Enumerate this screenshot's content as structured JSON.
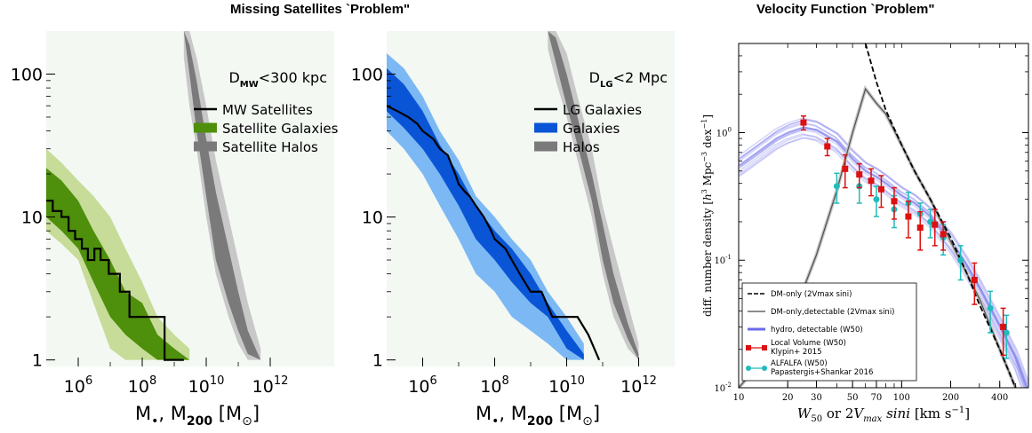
{
  "titles": {
    "left": "Missing Satellites `Problem\"",
    "right": "Velocity Function `Problem\""
  },
  "colors": {
    "green_dark": "#4e8f0c",
    "green_light": "#c6dc98",
    "blue_dark": "#0a55d6",
    "blue_light": "#7cb8f4",
    "gray_dark": "#7a7a7a",
    "gray_light": "#c8c8c8",
    "panel_bg": "#f3f8f3",
    "hydro": "#6a6ae8",
    "red": "#dd1111",
    "cyan": "#22bbbb"
  },
  "chart_data": [
    {
      "type": "line",
      "xscale": "log",
      "yscale": "log",
      "xlim": [
        100000,
        100000000000000
      ],
      "ylim": [
        0.9,
        200
      ],
      "xticks": [
        1000000,
        100000000,
        10000000000,
        1000000000000
      ],
      "xtick_labels": [
        "10",
        "10",
        "10",
        "10"
      ],
      "xtick_exps": [
        "6",
        "8",
        "10",
        "12"
      ],
      "yticks": [
        1,
        10,
        100
      ],
      "ytick_labels": [
        "1",
        "10",
        "100"
      ],
      "xlabel": "M, M [M]",
      "xlabel_parts": {
        "m1": "M",
        "sub1": "•",
        "sep": ",  M",
        "sub2": "200",
        "unit_open": " [M",
        "unit_sub": "⊙",
        "unit_close": "]"
      },
      "annotation": {
        "main": "D",
        "sub": "MW",
        "rest": "<300 kpc"
      },
      "legend": [
        "MW Satellites",
        "Satellite Galaxies",
        "Satellite Halos"
      ],
      "series": [
        {
          "name": "MW Satellites",
          "kind": "step",
          "x": [
            100000,
            160000,
            160000,
            300000,
            300000,
            500000,
            500000,
            800000,
            800000,
            1300000,
            1300000,
            2000000,
            2000000,
            3200000,
            3200000,
            5000000,
            5000000,
            9000000,
            9000000,
            20000000,
            20000000,
            40000000,
            40000000,
            500000000,
            500000000,
            2000000000
          ],
          "y": [
            13,
            13,
            11,
            11,
            10,
            10,
            8,
            8,
            7,
            7,
            6,
            6,
            5,
            5,
            6,
            6,
            5,
            5,
            4,
            4,
            3,
            3,
            2,
            2,
            1,
            1
          ]
        },
        {
          "name": "Satellite Galaxies",
          "kind": "band",
          "x": [
            100000,
            300000,
            1000000,
            3000000,
            10000000,
            30000000,
            100000000,
            300000000,
            1000000000,
            3000000000
          ],
          "outer_low": [
            8,
            6.5,
            5,
            2.5,
            1.2,
            1.0,
            1.0,
            1.0,
            1.0,
            1.0
          ],
          "outer_high": [
            30,
            24,
            18,
            14,
            10,
            6,
            3.5,
            2,
            1.5,
            1.2
          ],
          "inner_low": [
            10,
            8,
            6,
            3.5,
            2,
            1.5,
            1.2,
            1.0,
            1.0,
            1.0
          ],
          "inner_high": [
            22,
            18,
            13,
            8,
            5,
            3,
            2.5,
            1.5,
            1.2,
            1.0
          ]
        },
        {
          "name": "Satellite Halos",
          "kind": "band",
          "x": [
            2000000000,
            3000000000,
            5000000000,
            10000000000,
            20000000000,
            50000000000,
            100000000000,
            200000000000,
            500000000000
          ],
          "outer_low": [
            130,
            60,
            30,
            10,
            4,
            2,
            1.3,
            1.0,
            1.0
          ],
          "outer_high": [
            200,
            200,
            130,
            60,
            25,
            10,
            5,
            2.5,
            1.2
          ],
          "inner_low": [
            200,
            100,
            40,
            14,
            5,
            2.5,
            1.6,
            1.1,
            1.0
          ],
          "inner_high": [
            200,
            160,
            90,
            35,
            15,
            6,
            3,
            1.6,
            1.0
          ]
        }
      ]
    },
    {
      "type": "line",
      "xscale": "log",
      "yscale": "log",
      "xlim": [
        100000,
        10000000000000
      ],
      "ylim": [
        0.9,
        200
      ],
      "xticks": [
        1000000,
        100000000,
        10000000000,
        1000000000000
      ],
      "xtick_labels": [
        "10",
        "10",
        "10",
        "10"
      ],
      "xtick_exps": [
        "6",
        "8",
        "10",
        "12"
      ],
      "yticks": [
        1,
        10,
        100
      ],
      "ytick_labels": [
        "1",
        "10",
        "100"
      ],
      "xlabel": "M, M [M]",
      "annotation": {
        "main": "D",
        "sub": "LG",
        "rest": "<2 Mpc"
      },
      "legend": [
        "LG Galaxies",
        "Galaxies",
        "Halos"
      ],
      "series": [
        {
          "name": "LG Galaxies",
          "kind": "step",
          "x": [
            100000,
            200000,
            400000,
            700000,
            1000000,
            2000000,
            3000000,
            5000000,
            8000000,
            10000000,
            15000000,
            20000000,
            30000000,
            50000000,
            80000000,
            100000000,
            200000000,
            300000000,
            500000000,
            1000000000,
            2000000000,
            4000000000,
            10000000000,
            20000000000,
            40000000000,
            80000000000
          ],
          "y": [
            60,
            55,
            50,
            45,
            40,
            35,
            30,
            27,
            20,
            17,
            15,
            14,
            12,
            10,
            8,
            7,
            6,
            5,
            4,
            3,
            3,
            2,
            2,
            2,
            1.5,
            1
          ]
        },
        {
          "name": "Galaxies",
          "kind": "band",
          "x": [
            100000,
            300000,
            1000000,
            3000000,
            10000000,
            30000000,
            100000000,
            300000000,
            1000000000,
            3000000000,
            10000000000,
            30000000000
          ],
          "outer_low": [
            40,
            30,
            20,
            12,
            7,
            4,
            3,
            2,
            1.6,
            1.3,
            1.0,
            1.0
          ],
          "outer_high": [
            140,
            110,
            70,
            40,
            25,
            14,
            10,
            7,
            5,
            3,
            2,
            1.3
          ],
          "inner_low": [
            55,
            42,
            30,
            20,
            12,
            7,
            5,
            3.5,
            2.5,
            2,
            1.2,
            1.0
          ],
          "inner_high": [
            110,
            85,
            55,
            32,
            20,
            12,
            8,
            6,
            4,
            2.5,
            1.6,
            1.1
          ]
        },
        {
          "name": "Halos",
          "kind": "band",
          "x": [
            3000000000,
            5000000000,
            10000000000,
            20000000000,
            50000000000,
            100000000000,
            200000000000,
            500000000000,
            1000000000000
          ],
          "outer_low": [
            150,
            90,
            50,
            25,
            10,
            4,
            2,
            1.2,
            1.0
          ],
          "outer_high": [
            200,
            200,
            140,
            70,
            30,
            12,
            6,
            2.5,
            1.3
          ],
          "inner_low": [
            200,
            120,
            60,
            32,
            13,
            5,
            2.5,
            1.4,
            1.0
          ],
          "inner_high": [
            200,
            180,
            100,
            50,
            20,
            9,
            4,
            1.8,
            1.1
          ]
        }
      ]
    },
    {
      "type": "line",
      "xscale": "log",
      "yscale": "log",
      "xlim": [
        10,
        600
      ],
      "ylim": [
        0.01,
        5
      ],
      "xticks": [
        10,
        20,
        30,
        50,
        70,
        100,
        200,
        400
      ],
      "xticks_grid": [
        10,
        20,
        30,
        40,
        50,
        60,
        70,
        80,
        90,
        100,
        200,
        300,
        400,
        500
      ],
      "xtick_labels": [
        "10",
        "20",
        "30",
        "50",
        "70",
        "100",
        "200",
        "400"
      ],
      "minor_labels": [
        "40",
        "60",
        "80",
        "90",
        "200",
        "300"
      ],
      "yticks": [
        0.01,
        0.1,
        1
      ],
      "ytick_labels": [
        "10",
        "10",
        "10"
      ],
      "ytick_exps": [
        "-2",
        "-1",
        "0"
      ],
      "xlabel": "W50 or 2Vmax sini  [km s-1]",
      "xlabel_parts": {
        "w": "W",
        "w_sub": "50",
        "or": " or 2",
        "v": "V",
        "v_sub": "max",
        "sin": " sin",
        "i": "i",
        "unit": "  [km s",
        "unit_sup": "−1",
        "unit_close": "]"
      },
      "ylabel": "diff. number density [h3 Mpc-3 dex-1]",
      "ylabel_parts": {
        "a": "diff. number density  [",
        "h": "h",
        "h_sup": "3",
        "b": " Mpc",
        "b_sup": "−3",
        "c": " dex",
        "c_sup": "−1",
        "d": "]"
      },
      "legend": [
        {
          "label": "DM-only (2Vmax sini)",
          "style": "dashed"
        },
        {
          "label": "DM-only,detectable (2Vmax sini)",
          "style": "gray"
        },
        {
          "label": "hydro, detectable (W50)",
          "style": "blue"
        },
        {
          "label": "Local Volume (W50)",
          "label2": "Klypin+ 2015",
          "style": "red"
        },
        {
          "label": "ALFALFA (W50)",
          "label2": "Papastergis+Shankar 2016",
          "style": "cyan"
        }
      ],
      "series": [
        {
          "name": "DM-only (2Vmax sini)",
          "style": "dashed",
          "x": [
            60,
            70,
            80,
            100,
            120,
            150,
            200,
            250,
            300,
            400,
            500
          ],
          "y": [
            5,
            2.5,
            1.5,
            0.8,
            0.5,
            0.3,
            0.15,
            0.08,
            0.045,
            0.02,
            0.01
          ]
        },
        {
          "name": "DM-only,detectable (2Vmax sini)",
          "style": "gray",
          "x": [
            10,
            15,
            20,
            25,
            30,
            40,
            50,
            60,
            70,
            80,
            100,
            120,
            150,
            200,
            300,
            400,
            500
          ],
          "y": [
            0.01,
            0.018,
            0.03,
            0.06,
            0.11,
            0.35,
            1.0,
            2.2,
            1.7,
            1.4,
            0.8,
            0.5,
            0.3,
            0.14,
            0.05,
            0.02,
            0.01
          ]
        },
        {
          "name": "hydro, detectable (W50)",
          "style": "blue",
          "x": [
            10,
            13,
            17,
            20,
            25,
            30,
            40,
            50,
            60,
            70,
            80,
            100,
            120,
            150,
            200,
            250,
            300,
            400,
            500,
            600
          ],
          "y": [
            0.55,
            0.7,
            0.9,
            1.0,
            1.1,
            1.05,
            0.85,
            0.62,
            0.5,
            0.45,
            0.4,
            0.32,
            0.28,
            0.22,
            0.14,
            0.09,
            0.06,
            0.03,
            0.017,
            0.009
          ]
        },
        {
          "name": "Local Volume (W50)",
          "style": "red",
          "x": [
            25,
            35,
            45,
            55,
            65,
            75,
            90,
            110,
            130,
            160,
            180,
            280,
            420
          ],
          "y": [
            1.2,
            0.78,
            0.52,
            0.47,
            0.42,
            0.36,
            0.29,
            0.22,
            0.18,
            0.19,
            0.16,
            0.07,
            0.03
          ],
          "yerr": [
            0.15,
            0.12,
            0.15,
            0.1,
            0.1,
            0.1,
            0.08,
            0.07,
            0.06,
            0.06,
            0.04,
            0.025,
            0.012
          ]
        },
        {
          "name": "ALFALFA (W50)",
          "style": "cyan",
          "x": [
            40,
            55,
            70,
            90,
            110,
            130,
            150,
            180,
            230,
            350,
            440
          ],
          "y": [
            0.38,
            0.38,
            0.3,
            0.25,
            0.28,
            0.23,
            0.2,
            0.15,
            0.1,
            0.042,
            0.027
          ],
          "yerr": [
            0.1,
            0.1,
            0.08,
            0.07,
            0.06,
            0.05,
            0.05,
            0.04,
            0.03,
            0.015,
            0.01
          ]
        }
      ]
    }
  ]
}
